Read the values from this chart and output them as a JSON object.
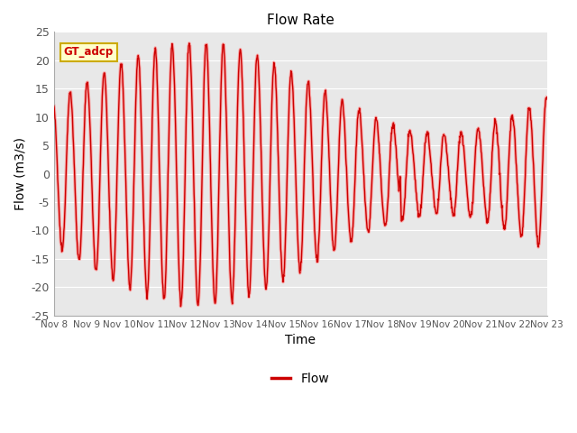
{
  "title": "Flow Rate",
  "xlabel": "Time",
  "ylabel": "Flow (m3/s)",
  "ylim": [
    -25,
    25
  ],
  "yticks": [
    -25,
    -20,
    -15,
    -10,
    -5,
    0,
    5,
    10,
    15,
    20,
    25
  ],
  "x_labels": [
    "Nov 8",
    "Nov 9",
    "Nov 10",
    "Nov 11",
    "Nov 12",
    "Nov 13",
    "Nov 14",
    "Nov 15",
    "Nov 16",
    "Nov 17",
    "Nov 18",
    "Nov 19",
    "Nov 20",
    "Nov 21",
    "Nov 22",
    "Nov 23"
  ],
  "line_color": "#cc0000",
  "line_color_light": "#ff8888",
  "fig_bg": "#ffffff",
  "plot_bg": "#e8e8e8",
  "grid_color": "#ffffff",
  "legend_label": "Flow",
  "annotation_text": "GT_adcp",
  "annotation_bg": "#ffffcc",
  "annotation_border": "#ccaa00",
  "annotation_text_color": "#cc0000"
}
